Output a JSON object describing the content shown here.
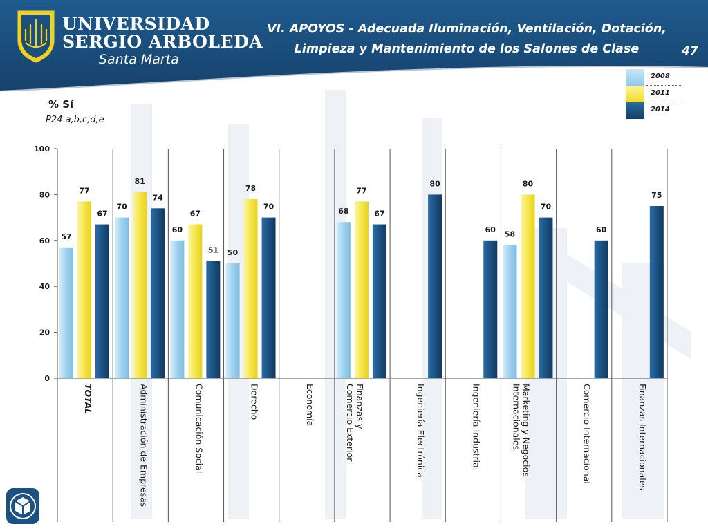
{
  "header": {
    "university_line1": "UNIVERSIDAD",
    "university_line2": "SERGIO ARBOLEDA",
    "campus": "Santa Marta",
    "title_line1": "VI. APOYOS - Adecuada Iluminación, Ventilación, Dotación,",
    "title_line2": "Limpieza y Mantenimiento de los Salones de Clase",
    "page_number": "47"
  },
  "colors": {
    "header_blue": "#1b4f7e",
    "series_2008": "#a9d6f0",
    "series_2011": "#f7ea5a",
    "series_2014": "#1b5283",
    "text": "#1a1a1a"
  },
  "chart_data": {
    "type": "bar",
    "title": "% Sí",
    "subtitle": "P24 a,b,c,d,e",
    "ylim": [
      0,
      100
    ],
    "yticks": [
      "0",
      "20",
      "40",
      "60",
      "80",
      "100"
    ],
    "legend_position": "top-right",
    "categories": [
      "TOTAL",
      "Administración de Empresas",
      "Comunicación Social",
      "Derecho",
      "Economía",
      "Finanzas y Comercio Exterior",
      "Ingeniería Electrónica",
      "Ingeniería Industrial",
      "Marketing y Negocios Internacionales",
      "Comercio Internacional",
      "Finanzas Internacionales"
    ],
    "series": [
      {
        "name": "2008",
        "values": [
          57,
          70,
          60,
          50,
          null,
          68,
          null,
          null,
          58,
          null,
          null
        ]
      },
      {
        "name": "2011",
        "values": [
          77,
          81,
          67,
          78,
          null,
          77,
          null,
          null,
          80,
          null,
          null
        ]
      },
      {
        "name": "2014",
        "values": [
          67,
          74,
          51,
          70,
          null,
          67,
          80,
          60,
          70,
          60,
          75
        ]
      }
    ]
  }
}
